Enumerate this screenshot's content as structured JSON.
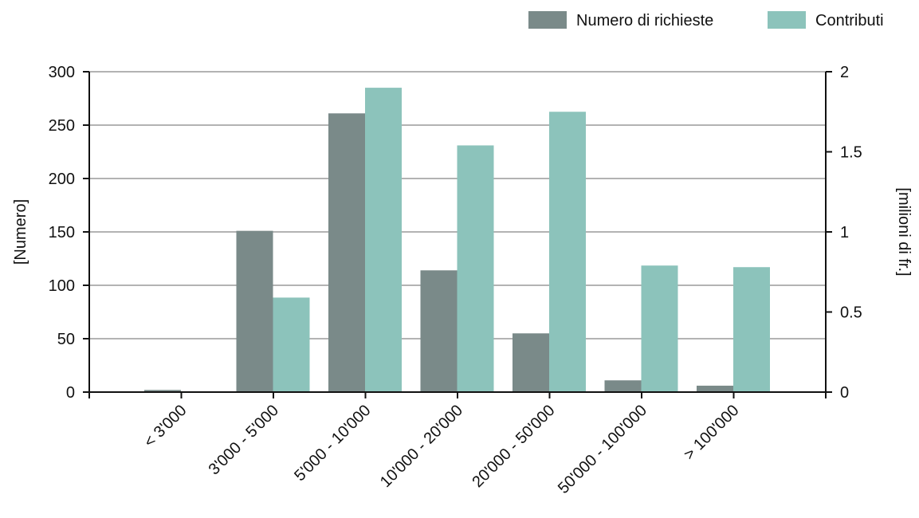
{
  "chart_data": {
    "type": "bar",
    "categories": [
      "< 3'000",
      "3'000 - 5'000",
      "5'000 - 10'000",
      "10'000 - 20'000",
      "20'000 - 50'000",
      "50'000 - 100'000",
      "> 100'000"
    ],
    "series": [
      {
        "name": "Numero di richieste",
        "axis": "left",
        "color": "#7a8a89",
        "values": [
          2,
          151,
          261,
          114,
          55,
          11,
          6
        ]
      },
      {
        "name": "Contributi",
        "axis": "right",
        "color": "#8cc3bb",
        "values": [
          0,
          0.59,
          1.9,
          1.54,
          1.75,
          0.79,
          0.78
        ]
      }
    ],
    "ylabel": "[Numero]",
    "y2label": "[milioni di fr.]",
    "ylim": [
      0,
      300
    ],
    "y2lim": [
      0,
      2
    ],
    "yticks": [
      0,
      50,
      100,
      150,
      200,
      250,
      300
    ],
    "yticklabels": [
      "0",
      "50",
      "100",
      "150",
      "200",
      "250",
      "300"
    ],
    "y2ticks": [
      0,
      0.5,
      1,
      1.5,
      2
    ],
    "y2ticklabels": [
      "0",
      "0.5",
      "1",
      "1.5",
      "2"
    ],
    "grid": true,
    "legend": "top-right"
  }
}
